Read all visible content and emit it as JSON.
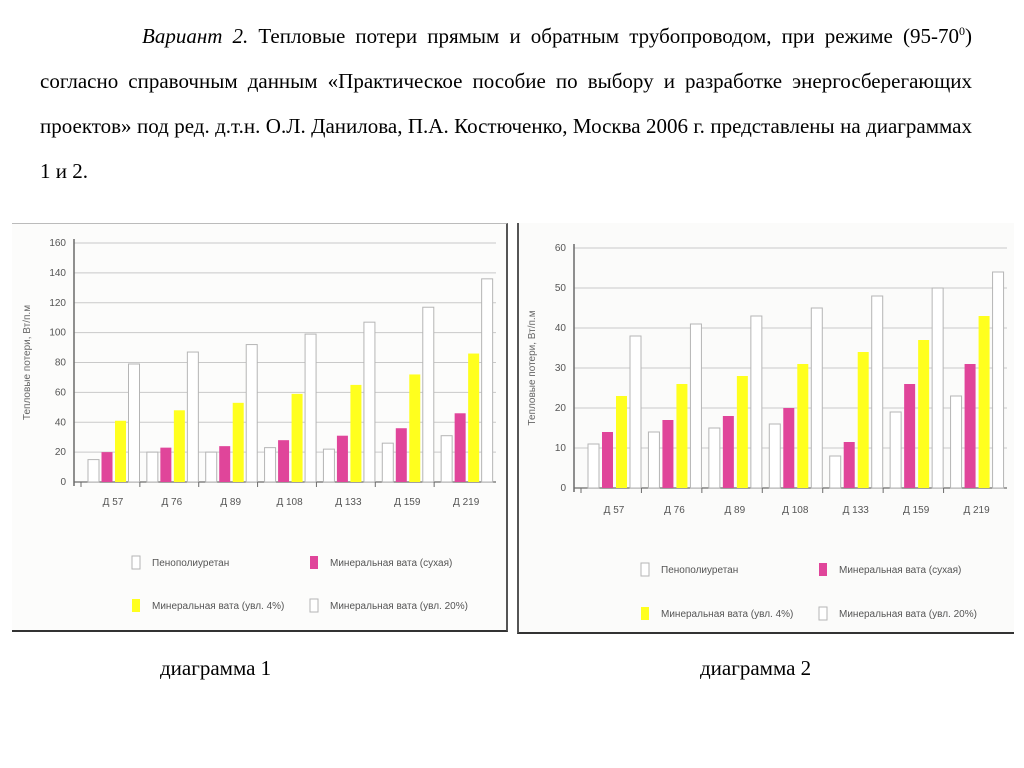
{
  "document": {
    "variant_label": "Вариант 2.",
    "text_part1": " Тепловые потери прямым и обратным трубопроводом, при режиме (95-70",
    "superscript": "0",
    "text_part2": ") согласно справочным данным «Практическое пособие по выбору и разработке энергосберегающих проектов» под ред. д.т.н. О.Л. Данилова, П.А. Костюченко, Москва 2006 г. представлены на диаграммах 1 и 2."
  },
  "captions": {
    "chart1": "диаграмма 1",
    "chart2": "диаграмма 2"
  },
  "colors": {
    "white_bar": "#ffffff",
    "magenta_bar": "#e0459a",
    "yellow_bar": "#ffff1e",
    "grid": "#c9c9c9",
    "axis": "#6b6b6b"
  },
  "chart_data": [
    {
      "type": "bar",
      "title": "",
      "ylabel": "Тепловые потери, Вт/п.м",
      "xlabel": "",
      "ylim": [
        0,
        160
      ],
      "yticks": [
        0,
        20,
        40,
        60,
        80,
        100,
        120,
        140,
        160
      ],
      "grid": true,
      "legend_position": "bottom",
      "categories": [
        "Д 57",
        "Д 76",
        "Д 89",
        "Д 108",
        "Д 133",
        "Д 159",
        "Д 219"
      ],
      "series": [
        {
          "name": "Пенополиуретан",
          "color": "white",
          "values": [
            15,
            20,
            20,
            23,
            22,
            26,
            31
          ]
        },
        {
          "name": "Минеральная вата (сухая)",
          "color": "magenta",
          "values": [
            20,
            23,
            24,
            28,
            31,
            36,
            46
          ]
        },
        {
          "name": "Минеральная вата (увл. 4%)",
          "color": "yellow",
          "values": [
            41,
            48,
            53,
            59,
            65,
            72,
            86
          ]
        },
        {
          "name": "Минеральная вата (увл. 20%)",
          "color": "white",
          "values": [
            79,
            87,
            92,
            99,
            107,
            117,
            136
          ]
        }
      ]
    },
    {
      "type": "bar",
      "title": "",
      "ylabel": "Тепловые потери, Вт/п.м",
      "xlabel": "",
      "ylim": [
        0,
        60
      ],
      "yticks": [
        0,
        10,
        20,
        30,
        40,
        50,
        60
      ],
      "grid": true,
      "legend_position": "bottom",
      "categories": [
        "Д 57",
        "Д 76",
        "Д 89",
        "Д 108",
        "Д 133",
        "Д 159",
        "Д 219"
      ],
      "series": [
        {
          "name": "Пенополиуретан",
          "color": "white",
          "values": [
            11,
            14,
            15,
            16,
            8,
            19,
            23
          ]
        },
        {
          "name": "Минеральная вата (сухая)",
          "color": "magenta",
          "values": [
            14,
            17,
            18,
            20,
            11.5,
            26,
            31
          ]
        },
        {
          "name": "Минеральная вата (увл. 4%)",
          "color": "yellow",
          "values": [
            23,
            26,
            28,
            31,
            34,
            37,
            43
          ]
        },
        {
          "name": "Минеральная вата (увл. 20%)",
          "color": "white",
          "values": [
            38,
            41,
            43,
            45,
            48,
            50,
            54
          ]
        }
      ]
    }
  ]
}
